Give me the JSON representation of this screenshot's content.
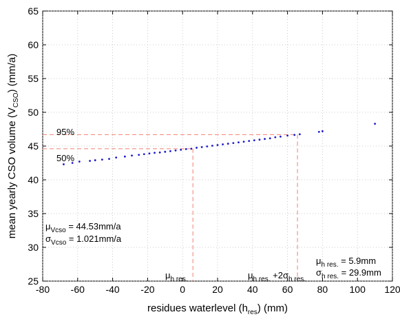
{
  "chart_data": {
    "type": "scatter",
    "xlabel": {
      "prefix": "residues waterlevel (h",
      "sub": "res",
      "suffix": ") (mm)"
    },
    "ylabel": {
      "prefix": "mean yearly CSO volume (V",
      "sub": "CSO",
      "suffix": ") (mm/a)"
    },
    "xlim": [
      -80,
      120
    ],
    "ylim": [
      25,
      65
    ],
    "xticks": [
      -80,
      -60,
      -40,
      -20,
      0,
      20,
      40,
      60,
      80,
      100,
      120
    ],
    "yticks": [
      25,
      30,
      35,
      40,
      45,
      50,
      55,
      60,
      65
    ],
    "grid": true,
    "point_color": "#1a1acc",
    "reference_line_color": "#f08070",
    "series": [
      {
        "points": [
          [
            -68,
            42.3
          ],
          [
            -63,
            42.5
          ],
          [
            -59,
            42.7
          ],
          [
            -53,
            42.8
          ],
          [
            -50,
            42.9
          ],
          [
            -46,
            43.0
          ],
          [
            -42,
            43.1
          ],
          [
            -38,
            43.3
          ],
          [
            -33,
            43.45
          ],
          [
            -29,
            43.6
          ],
          [
            -25,
            43.7
          ],
          [
            -22,
            43.8
          ],
          [
            -19,
            43.9
          ],
          [
            -16,
            44.0
          ],
          [
            -13,
            44.05
          ],
          [
            -10,
            44.15
          ],
          [
            -7,
            44.25
          ],
          [
            -4,
            44.35
          ],
          [
            -1,
            44.45
          ],
          [
            2,
            44.55
          ],
          [
            5,
            44.6
          ],
          [
            8,
            44.75
          ],
          [
            11,
            44.85
          ],
          [
            14,
            44.95
          ],
          [
            17,
            45.05
          ],
          [
            20,
            45.15
          ],
          [
            23,
            45.25
          ],
          [
            26,
            45.35
          ],
          [
            29,
            45.45
          ],
          [
            32,
            45.55
          ],
          [
            35,
            45.65
          ],
          [
            38,
            45.75
          ],
          [
            41,
            45.85
          ],
          [
            44,
            45.95
          ],
          [
            47,
            46.05
          ],
          [
            50,
            46.15
          ],
          [
            53,
            46.3
          ],
          [
            56,
            46.4
          ],
          [
            60,
            46.55
          ],
          [
            64,
            46.65
          ],
          [
            67,
            46.75
          ],
          [
            78,
            47.1
          ],
          [
            80,
            47.2
          ],
          [
            110,
            48.3
          ]
        ]
      }
    ],
    "reference_lines": {
      "p95_y": 46.7,
      "p50_y": 44.6,
      "mu_h_res_x": 5.9,
      "mu_plus_2sigma_x": 65.7
    },
    "annotations": {
      "p95": "95%",
      "p50": "50%",
      "mu_v": {
        "sym": "μ",
        "sub": "Vcso",
        "text": " = 44.53mm/a"
      },
      "sigma_v": {
        "sym": "σ",
        "sub": "Vcso",
        "text": " = 1.021mm/a"
      },
      "mu_h_label": {
        "sym": "μ",
        "sub": "h res."
      },
      "mu2s_label": {
        "sym": "μ",
        "sub": "h res.",
        "mid": " +2",
        "sym2": "σ",
        "sub2": "h res."
      },
      "mu_h_value": {
        "sym": "μ",
        "sub": "h res.",
        "text": " = 5.9mm"
      },
      "sigma_h_value": {
        "sym": "σ",
        "sub": "h res.",
        "text": " = 29.9mm"
      }
    }
  }
}
